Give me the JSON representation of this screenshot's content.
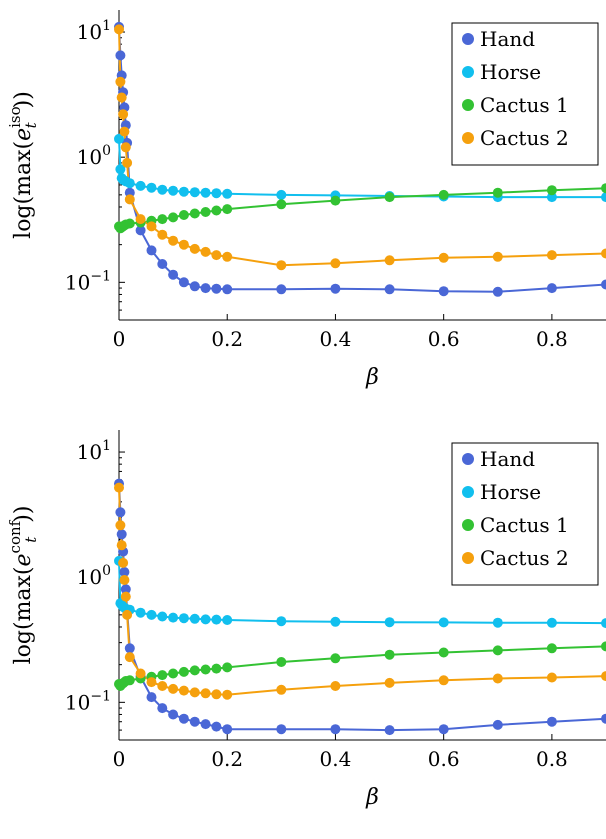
{
  "chart_data": [
    {
      "type": "line",
      "id": "top",
      "xlabel": "β",
      "ylabel": "log(max(e_t^iso))",
      "ylabel_main": "log(max(",
      "ylabel_var": "e",
      "ylabel_sup": "iso",
      "ylabel_sub": "t",
      "ylabel_close": "))",
      "yscale": "log",
      "xlim": [
        0,
        0.9
      ],
      "ylim": [
        0.05,
        15
      ],
      "xticks": [
        0,
        0.2,
        0.4,
        0.6,
        0.8
      ],
      "xtick_labels": [
        "0",
        "0.2",
        "0.4",
        "0.6",
        "0.8"
      ],
      "ytick_labels": [
        {
          "value": 10,
          "base": "10",
          "exp": "1"
        },
        {
          "value": 1,
          "base": "10",
          "exp": "0"
        },
        {
          "value": 0.1,
          "base": "10",
          "exp": "−1"
        }
      ],
      "legend_position": "top-right",
      "series": [
        {
          "name": "Hand",
          "color": "#4a67d6",
          "x": [
            0,
            0.0025,
            0.005,
            0.0075,
            0.01,
            0.0125,
            0.015,
            0.02,
            0.04,
            0.06,
            0.08,
            0.1,
            0.12,
            0.14,
            0.16,
            0.18,
            0.2,
            0.3,
            0.4,
            0.5,
            0.6,
            0.7,
            0.8,
            0.9
          ],
          "y": [
            11,
            6.5,
            4.5,
            3.3,
            2.5,
            1.8,
            1.3,
            0.52,
            0.26,
            0.18,
            0.14,
            0.115,
            0.1,
            0.093,
            0.09,
            0.089,
            0.088,
            0.088,
            0.089,
            0.088,
            0.085,
            0.084,
            0.09,
            0.096
          ]
        },
        {
          "name": "Horse",
          "color": "#11bfee",
          "x": [
            0,
            0.0025,
            0.005,
            0.0075,
            0.01,
            0.0125,
            0.02,
            0.04,
            0.06,
            0.08,
            0.1,
            0.12,
            0.14,
            0.16,
            0.18,
            0.2,
            0.3,
            0.4,
            0.5,
            0.6,
            0.7,
            0.8,
            0.9
          ],
          "y": [
            1.4,
            0.8,
            0.68,
            0.66,
            0.65,
            0.64,
            0.62,
            0.59,
            0.57,
            0.55,
            0.54,
            0.53,
            0.525,
            0.52,
            0.515,
            0.51,
            0.5,
            0.495,
            0.49,
            0.485,
            0.48,
            0.48,
            0.48
          ]
        },
        {
          "name": "Cactus 1",
          "color": "#33c233",
          "x": [
            0,
            0.0025,
            0.005,
            0.0075,
            0.01,
            0.0125,
            0.02,
            0.04,
            0.06,
            0.08,
            0.1,
            0.12,
            0.14,
            0.16,
            0.18,
            0.2,
            0.3,
            0.4,
            0.5,
            0.6,
            0.7,
            0.8,
            0.9
          ],
          "y": [
            0.28,
            0.27,
            0.275,
            0.28,
            0.285,
            0.29,
            0.295,
            0.3,
            0.31,
            0.32,
            0.33,
            0.345,
            0.355,
            0.365,
            0.375,
            0.385,
            0.42,
            0.45,
            0.48,
            0.5,
            0.52,
            0.545,
            0.565
          ]
        },
        {
          "name": "Cactus 2",
          "color": "#f5a00d",
          "x": [
            0,
            0.0025,
            0.005,
            0.0075,
            0.01,
            0.0125,
            0.015,
            0.02,
            0.04,
            0.06,
            0.08,
            0.1,
            0.12,
            0.14,
            0.16,
            0.18,
            0.2,
            0.3,
            0.4,
            0.5,
            0.6,
            0.7,
            0.8,
            0.9
          ],
          "y": [
            10.5,
            4.0,
            3.0,
            2.2,
            1.6,
            1.2,
            0.9,
            0.46,
            0.32,
            0.28,
            0.24,
            0.215,
            0.2,
            0.185,
            0.175,
            0.165,
            0.16,
            0.137,
            0.142,
            0.15,
            0.157,
            0.16,
            0.165,
            0.17
          ]
        }
      ]
    },
    {
      "type": "line",
      "id": "bottom",
      "xlabel": "β",
      "ylabel": "log(max(e_t^conf))",
      "ylabel_main": "log(max(",
      "ylabel_var": "e",
      "ylabel_sup": "conf",
      "ylabel_sub": "t",
      "ylabel_close": "))",
      "yscale": "log",
      "xlim": [
        0,
        0.9
      ],
      "ylim": [
        0.05,
        15
      ],
      "xticks": [
        0,
        0.2,
        0.4,
        0.6,
        0.8
      ],
      "xtick_labels": [
        "0",
        "0.2",
        "0.4",
        "0.6",
        "0.8"
      ],
      "ytick_labels": [
        {
          "value": 10,
          "base": "10",
          "exp": "1"
        },
        {
          "value": 1,
          "base": "10",
          "exp": "0"
        },
        {
          "value": 0.1,
          "base": "10",
          "exp": "−1"
        }
      ],
      "legend_position": "top-right",
      "series": [
        {
          "name": "Hand",
          "color": "#4a67d6",
          "x": [
            0,
            0.0025,
            0.005,
            0.0075,
            0.01,
            0.0125,
            0.015,
            0.02,
            0.04,
            0.06,
            0.08,
            0.1,
            0.12,
            0.14,
            0.16,
            0.18,
            0.2,
            0.3,
            0.4,
            0.5,
            0.6,
            0.7,
            0.8,
            0.9
          ],
          "y": [
            5.6,
            3.3,
            2.2,
            1.6,
            1.1,
            0.8,
            0.55,
            0.27,
            0.16,
            0.11,
            0.09,
            0.08,
            0.074,
            0.07,
            0.067,
            0.064,
            0.061,
            0.061,
            0.061,
            0.06,
            0.061,
            0.066,
            0.07,
            0.074
          ]
        },
        {
          "name": "Horse",
          "color": "#11bfee",
          "x": [
            0,
            0.0025,
            0.005,
            0.0075,
            0.01,
            0.0125,
            0.02,
            0.04,
            0.06,
            0.08,
            0.1,
            0.12,
            0.14,
            0.16,
            0.18,
            0.2,
            0.3,
            0.4,
            0.5,
            0.6,
            0.7,
            0.8,
            0.9
          ],
          "y": [
            1.35,
            0.62,
            0.6,
            0.58,
            0.57,
            0.56,
            0.55,
            0.52,
            0.5,
            0.485,
            0.475,
            0.47,
            0.465,
            0.46,
            0.458,
            0.455,
            0.445,
            0.44,
            0.437,
            0.435,
            0.433,
            0.432,
            0.43
          ]
        },
        {
          "name": "Cactus 1",
          "color": "#33c233",
          "x": [
            0,
            0.0025,
            0.005,
            0.0075,
            0.01,
            0.0125,
            0.02,
            0.04,
            0.06,
            0.08,
            0.1,
            0.12,
            0.14,
            0.16,
            0.18,
            0.2,
            0.3,
            0.4,
            0.5,
            0.6,
            0.7,
            0.8,
            0.9
          ],
          "y": [
            0.14,
            0.135,
            0.14,
            0.142,
            0.145,
            0.148,
            0.15,
            0.155,
            0.16,
            0.165,
            0.17,
            0.175,
            0.18,
            0.183,
            0.186,
            0.19,
            0.21,
            0.225,
            0.24,
            0.25,
            0.26,
            0.27,
            0.28
          ]
        },
        {
          "name": "Cactus 2",
          "color": "#f5a00d",
          "x": [
            0,
            0.0025,
            0.005,
            0.0075,
            0.01,
            0.0125,
            0.015,
            0.02,
            0.04,
            0.06,
            0.08,
            0.1,
            0.12,
            0.14,
            0.16,
            0.18,
            0.2,
            0.3,
            0.4,
            0.5,
            0.6,
            0.7,
            0.8,
            0.9
          ],
          "y": [
            5.2,
            2.6,
            1.8,
            1.3,
            0.95,
            0.7,
            0.5,
            0.23,
            0.17,
            0.145,
            0.135,
            0.128,
            0.124,
            0.12,
            0.118,
            0.116,
            0.115,
            0.126,
            0.135,
            0.143,
            0.15,
            0.155,
            0.158,
            0.162
          ]
        }
      ]
    }
  ]
}
